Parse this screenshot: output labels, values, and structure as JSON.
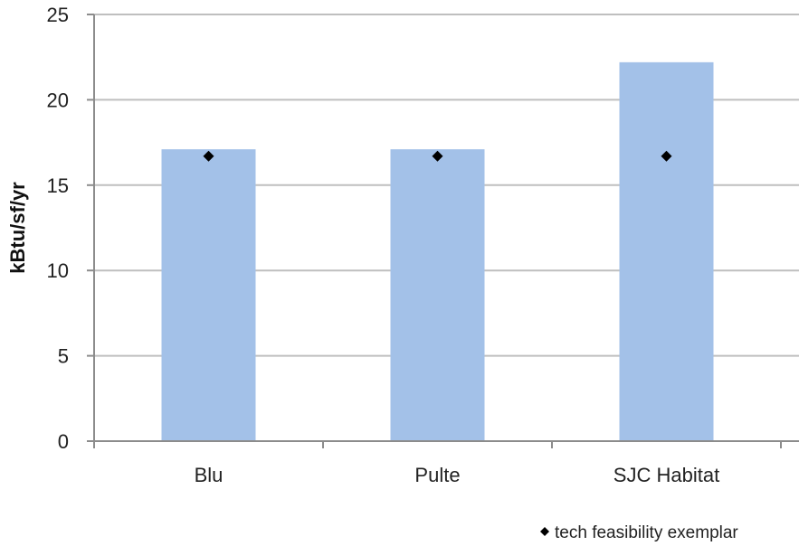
{
  "chart_data": {
    "type": "bar",
    "title": "",
    "xlabel": "",
    "ylabel": "kBtu/sf/yr",
    "ylim": [
      0,
      25
    ],
    "yticks": [
      0,
      5,
      10,
      15,
      20,
      25
    ],
    "categories": [
      "Blu",
      "Pulte",
      "SJC Habitat"
    ],
    "series": [
      {
        "kind": "bar",
        "values": [
          17.1,
          17.1,
          22.2
        ],
        "color": "#A3C1E8"
      },
      {
        "name": "tech feasibility exemplar",
        "kind": "marker",
        "marker": "diamond",
        "values": [
          16.7,
          16.7,
          16.7
        ],
        "color": "#000000"
      }
    ],
    "grid": true,
    "legend": "bottom-right"
  }
}
